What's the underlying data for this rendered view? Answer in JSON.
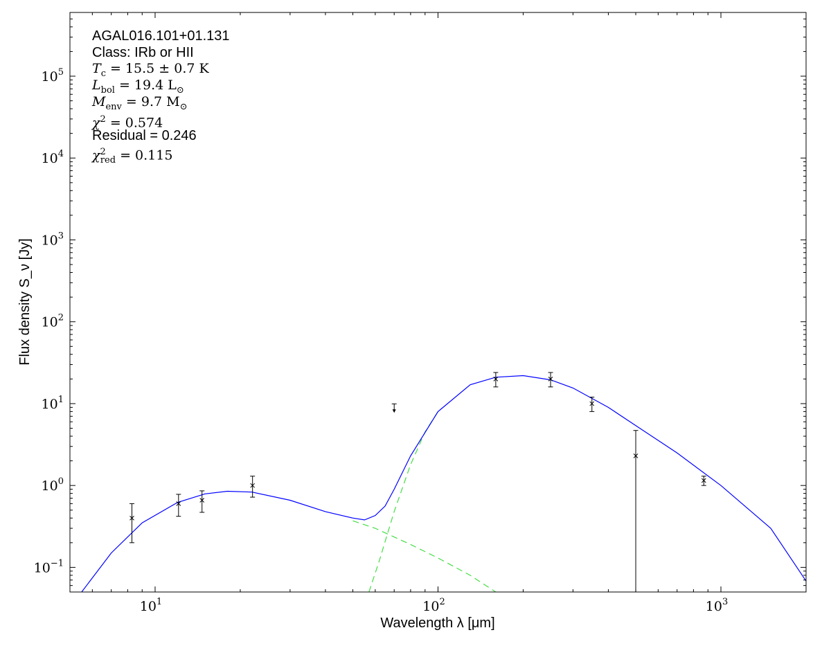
{
  "annotations": {
    "source": "AGAL016.101+01.131",
    "class_text": "Class: IRb or HII",
    "tc_symbol": "T",
    "tc_sub": "c",
    "tc_value": " = 15.5 ± 0.7 K",
    "lbol_symbol": "L",
    "lbol_sub": "bol",
    "lbol_value": " = 19.4 L",
    "lbol_unit_sub": "⊙",
    "menv_symbol": "M",
    "menv_sub": "env",
    "menv_value": " = 9.7 M",
    "menv_unit_sub": "⊙",
    "chi2_symbol": "χ",
    "chi2_sup": "2",
    "chi2_value": " = 0.574",
    "residual": "Residual = 0.246",
    "chi2red_symbol": "χ",
    "chi2red_sup": "2",
    "chi2red_sub": "red",
    "chi2red_value": " = 0.115"
  },
  "chart_data": {
    "type": "scatter",
    "xlabel": "Wavelength λ [μm]",
    "ylabel": "Flux density S_ν [Jy]",
    "xscale": "log",
    "yscale": "log",
    "xlim": [
      5,
      2000
    ],
    "ylim": [
      0.05,
      600000
    ],
    "x_ticks": [
      {
        "value": 10,
        "label": "10",
        "exp": "1"
      },
      {
        "value": 100,
        "label": "10",
        "exp": "2"
      },
      {
        "value": 1000,
        "label": "10",
        "exp": "3"
      }
    ],
    "y_ticks": [
      {
        "value": 0.1,
        "label": "10",
        "exp": "−1"
      },
      {
        "value": 1,
        "label": "10",
        "exp": "0"
      },
      {
        "value": 10,
        "label": "10",
        "exp": "1"
      },
      {
        "value": 100,
        "label": "10",
        "exp": "2"
      },
      {
        "value": 1000,
        "label": "10",
        "exp": "3"
      },
      {
        "value": 10000,
        "label": "10",
        "exp": "4"
      },
      {
        "value": 100000,
        "label": "10",
        "exp": "5"
      }
    ],
    "grid": false,
    "points": [
      {
        "x": 8.28,
        "y": 0.4,
        "ylo": 0.2,
        "yhi": 0.6
      },
      {
        "x": 12.1,
        "y": 0.6,
        "ylo": 0.42,
        "yhi": 0.78
      },
      {
        "x": 14.65,
        "y": 0.66,
        "ylo": 0.47,
        "yhi": 0.86
      },
      {
        "x": 22.1,
        "y": 1.0,
        "ylo": 0.72,
        "yhi": 1.3
      },
      {
        "x": 160,
        "y": 20,
        "ylo": 16,
        "yhi": 24
      },
      {
        "x": 250,
        "y": 20,
        "ylo": 16,
        "yhi": 24
      },
      {
        "x": 350,
        "y": 10,
        "ylo": 8,
        "yhi": 12
      },
      {
        "x": 500,
        "y": 2.3,
        "ylo": 0.05,
        "yhi": 4.7
      },
      {
        "x": 870,
        "y": 1.15,
        "ylo": 1.0,
        "yhi": 1.3
      }
    ],
    "upper_limits": [
      {
        "x": 70,
        "y": 8.5
      }
    ],
    "model_total": {
      "color": "#0000ff",
      "x": [
        5.5,
        7,
        9,
        12,
        15,
        18,
        22,
        30,
        40,
        50,
        55,
        60,
        65,
        70,
        80,
        100,
        130,
        160,
        200,
        250,
        300,
        400,
        500,
        700,
        1000,
        1500,
        2000
      ],
      "y": [
        0.05,
        0.15,
        0.35,
        0.62,
        0.79,
        0.85,
        0.83,
        0.66,
        0.48,
        0.4,
        0.38,
        0.43,
        0.56,
        0.9,
        2.3,
        8.0,
        17,
        21,
        22,
        19.5,
        15.5,
        9.0,
        5.4,
        2.5,
        1.0,
        0.3,
        0.068
      ]
    },
    "model_components": [
      {
        "color": "#44dd44",
        "dash": true,
        "x": [
          50,
          60,
          80,
          100,
          130,
          160
        ],
        "y": [
          0.37,
          0.3,
          0.19,
          0.13,
          0.08,
          0.05
        ]
      },
      {
        "color": "#44dd44",
        "dash": true,
        "x": [
          57,
          62,
          70,
          80,
          90,
          100
        ],
        "y": [
          0.05,
          0.12,
          0.48,
          1.8,
          4.5,
          8.0
        ]
      }
    ]
  }
}
